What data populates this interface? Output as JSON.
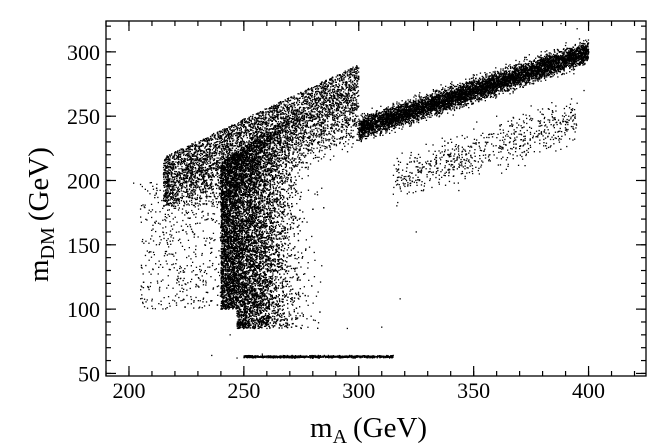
{
  "chart_data": {
    "type": "scatter",
    "title": "",
    "xlabel": {
      "main": "m",
      "subscript": "A",
      "unit": "(GeV)"
    },
    "ylabel": {
      "main": "m",
      "subscript": "DM",
      "unit": "(GeV)"
    },
    "xlim": [
      190,
      425
    ],
    "ylim": [
      48,
      324
    ],
    "x_major_ticks": [
      200,
      250,
      300,
      350,
      400
    ],
    "y_major_ticks": [
      50,
      100,
      150,
      200,
      250,
      300
    ],
    "x_minor_step": 10,
    "y_minor_step": 10,
    "x_tick_labels": [
      "200",
      "250",
      "300",
      "350",
      "400"
    ],
    "y_tick_labels": [
      "50",
      "100",
      "150",
      "200",
      "250",
      "300"
    ],
    "grid": false,
    "legend": "none",
    "marker_color": "#000000",
    "series": [
      {
        "description_regions": [
          {
            "shape": "upper-left wedge",
            "x": [
              215,
              300
            ],
            "y_lower": [
              195,
              210
            ],
            "y_upper": [
              218,
              290
            ]
          },
          {
            "shape": "dense core",
            "x": [
              240,
              315
            ],
            "y": [
              85,
              290
            ]
          },
          {
            "shape": "upper branch",
            "x": [
              300,
              400
            ],
            "y": [
              200,
              324
            ]
          },
          {
            "shape": "lower thin band",
            "x": [
              250,
              315
            ],
            "y": [
              62,
              66
            ]
          }
        ],
        "points_sample": [
          [
            202,
            198
          ],
          [
            205,
            197
          ],
          [
            212,
            194
          ],
          [
            215,
            205
          ],
          [
            221,
            186
          ],
          [
            225,
            175
          ],
          [
            230,
            118
          ],
          [
            233,
            150
          ],
          [
            240,
            100
          ],
          [
            244,
            80
          ],
          [
            247,
            95
          ],
          [
            250,
            90
          ],
          [
            255,
            86
          ],
          [
            260,
            85
          ],
          [
            275,
            85
          ],
          [
            295,
            85
          ],
          [
            310,
            86
          ],
          [
            318,
            108
          ],
          [
            325,
            160
          ],
          [
            330,
            215
          ],
          [
            345,
            235
          ],
          [
            360,
            250
          ],
          [
            375,
            258
          ],
          [
            380,
            290
          ],
          [
            392,
            300
          ],
          [
            398,
            270
          ],
          [
            385,
            248
          ],
          [
            378,
            255
          ],
          [
            365,
            246
          ],
          [
            340,
            232
          ],
          [
            350,
            240
          ],
          [
            395,
            318
          ],
          [
            388,
            322
          ],
          [
            236,
            64
          ],
          [
            247,
            62
          ],
          [
            258,
            65
          ],
          [
            271,
            64
          ],
          [
            285,
            64
          ],
          [
            296,
            64
          ],
          [
            305,
            63
          ],
          [
            315,
            64
          ]
        ]
      }
    ]
  }
}
